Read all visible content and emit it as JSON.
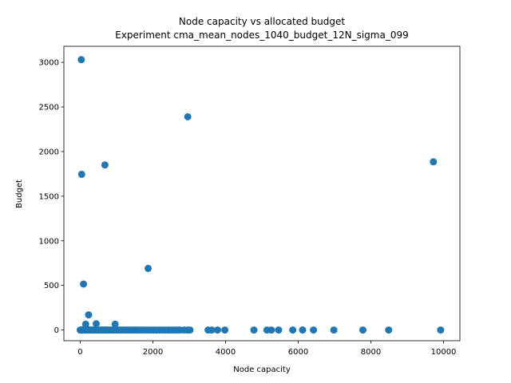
{
  "chart_data": {
    "type": "scatter",
    "title": "Node capacity vs allocated budget",
    "subtitle": "Experiment cma_mean_nodes_1040_budget_12N_sigma_099",
    "xlabel": "Node capacity",
    "ylabel": "Budget",
    "xlim": [
      -450,
      10450
    ],
    "ylim": [
      -120,
      3180
    ],
    "x_ticks": [
      0,
      2000,
      4000,
      6000,
      8000,
      10000
    ],
    "y_ticks": [
      0,
      500,
      1000,
      1500,
      2000,
      2500,
      3000
    ],
    "grid": false,
    "marker_color": "#1f77b4",
    "points": [
      [
        30,
        3030
      ],
      [
        2960,
        2390
      ],
      [
        9720,
        1885
      ],
      [
        680,
        1850
      ],
      [
        40,
        1745
      ],
      [
        1870,
        690
      ],
      [
        90,
        515
      ],
      [
        230,
        170
      ],
      [
        150,
        65
      ],
      [
        440,
        70
      ],
      [
        960,
        65
      ],
      [
        0,
        0
      ],
      [
        10,
        0
      ],
      [
        20,
        0
      ],
      [
        30,
        0
      ],
      [
        40,
        0
      ],
      [
        50,
        0
      ],
      [
        60,
        0
      ],
      [
        70,
        0
      ],
      [
        80,
        0
      ],
      [
        100,
        0
      ],
      [
        120,
        0
      ],
      [
        140,
        0
      ],
      [
        160,
        0
      ],
      [
        180,
        0
      ],
      [
        200,
        0
      ],
      [
        220,
        0
      ],
      [
        250,
        0
      ],
      [
        280,
        0
      ],
      [
        310,
        0
      ],
      [
        340,
        0
      ],
      [
        370,
        0
      ],
      [
        400,
        0
      ],
      [
        430,
        0
      ],
      [
        460,
        0
      ],
      [
        500,
        0
      ],
      [
        540,
        0
      ],
      [
        580,
        0
      ],
      [
        620,
        0
      ],
      [
        660,
        0
      ],
      [
        700,
        0
      ],
      [
        740,
        0
      ],
      [
        780,
        0
      ],
      [
        820,
        0
      ],
      [
        860,
        0
      ],
      [
        900,
        0
      ],
      [
        950,
        0
      ],
      [
        1000,
        0
      ],
      [
        1050,
        0
      ],
      [
        1100,
        0
      ],
      [
        1150,
        0
      ],
      [
        1200,
        0
      ],
      [
        1260,
        0
      ],
      [
        1320,
        0
      ],
      [
        1380,
        0
      ],
      [
        1440,
        0
      ],
      [
        1500,
        0
      ],
      [
        1560,
        0
      ],
      [
        1620,
        0
      ],
      [
        1700,
        0
      ],
      [
        1780,
        0
      ],
      [
        1860,
        0
      ],
      [
        1940,
        0
      ],
      [
        2020,
        0
      ],
      [
        2100,
        0
      ],
      [
        2180,
        0
      ],
      [
        2260,
        0
      ],
      [
        2340,
        0
      ],
      [
        2420,
        0
      ],
      [
        2500,
        0
      ],
      [
        2580,
        0
      ],
      [
        2660,
        0
      ],
      [
        2740,
        0
      ],
      [
        2850,
        0
      ],
      [
        2950,
        0
      ],
      [
        3020,
        0
      ],
      [
        3520,
        0
      ],
      [
        3620,
        0
      ],
      [
        3780,
        0
      ],
      [
        3980,
        0
      ],
      [
        4780,
        0
      ],
      [
        5140,
        0
      ],
      [
        5260,
        0
      ],
      [
        5460,
        0
      ],
      [
        5850,
        0
      ],
      [
        6120,
        0
      ],
      [
        6420,
        0
      ],
      [
        6980,
        0
      ],
      [
        7780,
        0
      ],
      [
        8490,
        0
      ],
      [
        9920,
        0
      ]
    ]
  }
}
